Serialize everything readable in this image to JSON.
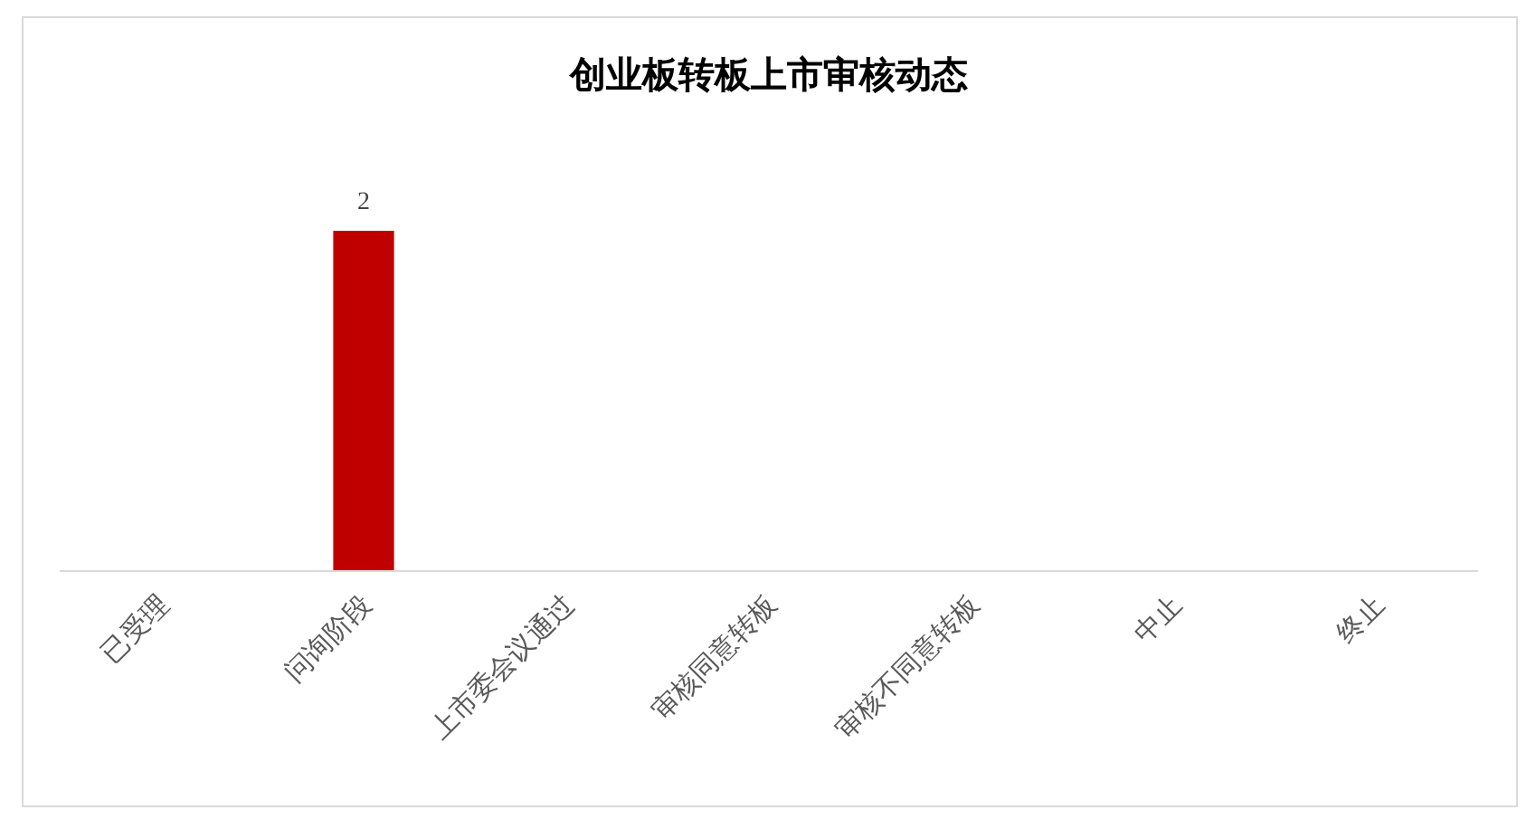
{
  "chart_data": {
    "type": "bar",
    "title": "创业板转板上市审核动态",
    "categories": [
      "已受理",
      "问询阶段",
      "上市委会议通过",
      "审核同意转板",
      "审核不同意转板",
      "中止",
      "终止"
    ],
    "values": [
      0,
      2,
      0,
      0,
      0,
      0,
      0
    ],
    "value_labels": [
      null,
      "2",
      null,
      null,
      null,
      null,
      null
    ],
    "color": "#c00000"
  }
}
